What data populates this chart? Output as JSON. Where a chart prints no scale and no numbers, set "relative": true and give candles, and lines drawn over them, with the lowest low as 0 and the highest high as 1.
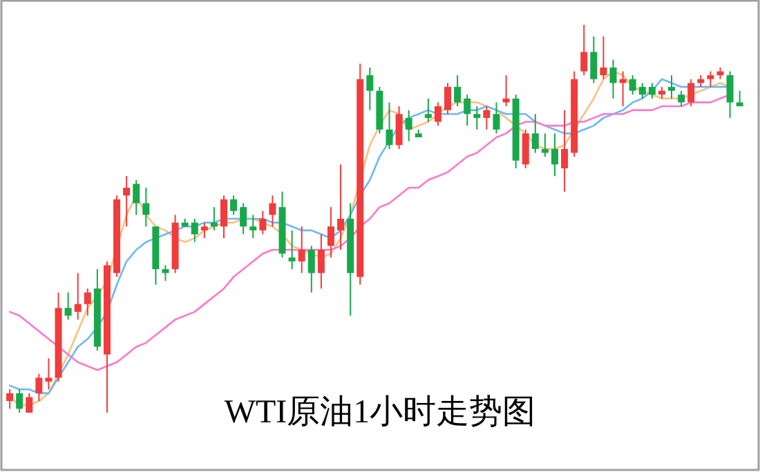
{
  "chart_data": {
    "type": "candlestick",
    "title": "WTI原油1小时走势图",
    "relative": true,
    "categories": [
      null,
      null,
      null,
      null,
      null,
      null,
      null,
      null,
      null,
      null,
      null,
      null,
      null,
      null,
      null,
      null,
      null,
      null,
      null,
      null,
      null,
      null,
      null,
      null,
      null,
      null,
      null,
      null,
      null,
      null,
      null,
      null,
      null,
      null,
      null,
      null,
      null,
      null,
      null,
      null,
      null,
      null,
      null,
      null,
      null,
      null,
      null,
      null,
      null,
      null,
      null,
      null,
      null,
      null,
      null,
      null,
      null,
      null,
      null,
      null,
      null,
      null,
      null,
      null,
      null,
      null,
      null,
      null,
      null,
      null,
      null,
      null,
      null,
      null,
      null,
      null
    ],
    "ohlc": [
      [
        0.03,
        0.06,
        0.01,
        0.05
      ],
      [
        0.05,
        0.06,
        0.0,
        0.01
      ],
      [
        0.0,
        0.05,
        0.0,
        0.04
      ],
      [
        0.05,
        0.1,
        0.03,
        0.09
      ],
      [
        0.08,
        0.14,
        0.06,
        0.09
      ],
      [
        0.09,
        0.31,
        0.08,
        0.27
      ],
      [
        0.27,
        0.31,
        0.24,
        0.25
      ],
      [
        0.26,
        0.36,
        0.24,
        0.28
      ],
      [
        0.28,
        0.32,
        0.25,
        0.31
      ],
      [
        0.32,
        0.37,
        0.16,
        0.17
      ],
      [
        0.15,
        0.39,
        0.0,
        0.38
      ],
      [
        0.36,
        0.56,
        0.35,
        0.55
      ],
      [
        0.56,
        0.61,
        0.48,
        0.58
      ],
      [
        0.59,
        0.6,
        0.51,
        0.54
      ],
      [
        0.54,
        0.58,
        0.48,
        0.51
      ],
      [
        0.48,
        0.48,
        0.33,
        0.37
      ],
      [
        0.37,
        0.38,
        0.34,
        0.36
      ],
      [
        0.37,
        0.51,
        0.36,
        0.49
      ],
      [
        0.49,
        0.5,
        0.48,
        0.48
      ],
      [
        0.49,
        0.5,
        0.44,
        0.46
      ],
      [
        0.47,
        0.49,
        0.45,
        0.48
      ],
      [
        0.49,
        0.53,
        0.47,
        0.48
      ],
      [
        0.48,
        0.56,
        0.45,
        0.55
      ],
      [
        0.55,
        0.56,
        0.51,
        0.52
      ],
      [
        0.53,
        0.54,
        0.46,
        0.48
      ],
      [
        0.48,
        0.51,
        0.45,
        0.47
      ],
      [
        0.47,
        0.52,
        0.46,
        0.5
      ],
      [
        0.51,
        0.56,
        0.48,
        0.54
      ],
      [
        0.53,
        0.57,
        0.4,
        0.41
      ],
      [
        0.4,
        0.47,
        0.37,
        0.39
      ],
      [
        0.39,
        0.48,
        0.36,
        0.42
      ],
      [
        0.42,
        0.43,
        0.31,
        0.36
      ],
      [
        0.36,
        0.46,
        0.32,
        0.42
      ],
      [
        0.43,
        0.53,
        0.4,
        0.48
      ],
      [
        0.47,
        0.64,
        0.42,
        0.5
      ],
      [
        0.5,
        0.54,
        0.25,
        0.36
      ],
      [
        0.35,
        0.9,
        0.33,
        0.86
      ],
      [
        0.87,
        0.89,
        0.78,
        0.83
      ],
      [
        0.83,
        0.84,
        0.72,
        0.73
      ],
      [
        0.73,
        0.8,
        0.68,
        0.69
      ],
      [
        0.69,
        0.79,
        0.68,
        0.77
      ],
      [
        0.76,
        0.78,
        0.7,
        0.73
      ],
      [
        0.72,
        0.73,
        0.71,
        0.71
      ],
      [
        0.77,
        0.81,
        0.75,
        0.76
      ],
      [
        0.75,
        0.8,
        0.74,
        0.79
      ],
      [
        0.78,
        0.85,
        0.77,
        0.84
      ],
      [
        0.84,
        0.87,
        0.79,
        0.8
      ],
      [
        0.81,
        0.82,
        0.74,
        0.77
      ],
      [
        0.77,
        0.79,
        0.73,
        0.76
      ],
      [
        0.76,
        0.79,
        0.73,
        0.78
      ],
      [
        0.77,
        0.8,
        0.72,
        0.73
      ],
      [
        0.8,
        0.87,
        0.79,
        0.81
      ],
      [
        0.81,
        0.82,
        0.63,
        0.65
      ],
      [
        0.64,
        0.73,
        0.63,
        0.72
      ],
      [
        0.72,
        0.77,
        0.67,
        0.68
      ],
      [
        0.68,
        0.72,
        0.66,
        0.67
      ],
      [
        0.68,
        0.72,
        0.61,
        0.64
      ],
      [
        0.63,
        0.78,
        0.57,
        0.68
      ],
      [
        0.67,
        0.88,
        0.66,
        0.86
      ],
      [
        0.88,
        1.0,
        0.87,
        0.93
      ],
      [
        0.93,
        0.97,
        0.85,
        0.86
      ],
      [
        0.87,
        0.97,
        0.86,
        0.89
      ],
      [
        0.89,
        0.91,
        0.81,
        0.85
      ],
      [
        0.85,
        0.88,
        0.79,
        0.86
      ],
      [
        0.86,
        0.87,
        0.82,
        0.83
      ],
      [
        0.84,
        0.85,
        0.81,
        0.82
      ],
      [
        0.84,
        0.85,
        0.81,
        0.82
      ],
      [
        0.82,
        0.84,
        0.81,
        0.83
      ],
      [
        0.84,
        0.87,
        0.81,
        0.83
      ],
      [
        0.82,
        0.83,
        0.79,
        0.8
      ],
      [
        0.8,
        0.86,
        0.79,
        0.85
      ],
      [
        0.85,
        0.87,
        0.84,
        0.86
      ],
      [
        0.86,
        0.88,
        0.84,
        0.87
      ],
      [
        0.87,
        0.89,
        0.86,
        0.88
      ],
      [
        0.87,
        0.88,
        0.76,
        0.8
      ],
      [
        0.8,
        0.83,
        0.79,
        0.79
      ]
    ],
    "colors": [
      "#f03c3c",
      "#18a84a",
      "#f03c3c",
      "#f03c3c",
      "#f03c3c",
      "#f03c3c",
      "#18a84a",
      "#f03c3c",
      "#f03c3c",
      "#18a84a",
      "#f03c3c",
      "#f03c3c",
      "#f03c3c",
      "#18a84a",
      "#18a84a",
      "#18a84a",
      "#18a84a",
      "#f03c3c",
      "#18a84a",
      "#18a84a",
      "#f03c3c",
      "#18a84a",
      "#f03c3c",
      "#18a84a",
      "#18a84a",
      "#18a84a",
      "#f03c3c",
      "#f03c3c",
      "#18a84a",
      "#18a84a",
      "#f03c3c",
      "#18a84a",
      "#f03c3c",
      "#f03c3c",
      "#f03c3c",
      "#18a84a",
      "#f03c3c",
      "#18a84a",
      "#18a84a",
      "#18a84a",
      "#f03c3c",
      "#18a84a",
      "#18a84a",
      "#18a84a",
      "#f03c3c",
      "#f03c3c",
      "#18a84a",
      "#18a84a",
      "#18a84a",
      "#f03c3c",
      "#18a84a",
      "#f03c3c",
      "#18a84a",
      "#f03c3c",
      "#18a84a",
      "#18a84a",
      "#18a84a",
      "#f03c3c",
      "#f03c3c",
      "#f03c3c",
      "#18a84a",
      "#f03c3c",
      "#18a84a",
      "#f03c3c",
      "#18a84a",
      "#18a84a",
      "#18a84a",
      "#f03c3c",
      "#18a84a",
      "#18a84a",
      "#f03c3c",
      "#f03c3c",
      "#f03c3c",
      "#f03c3c",
      "#18a84a",
      "#18a84a"
    ],
    "series": [
      {
        "type": "line",
        "color": "#ffbf80",
        "values": [
          0.04,
          0.02,
          0.02,
          0.03,
          0.05,
          0.1,
          0.15,
          0.21,
          0.27,
          0.3,
          0.34,
          null,
          0.51,
          0.56,
          0.51,
          0.48,
          0.47,
          0.45,
          0.44,
          0.45,
          0.47,
          0.48,
          0.49,
          0.49,
          0.5,
          0.5,
          0.49,
          0.48,
          0.46,
          0.43,
          0.42,
          0.41,
          0.4,
          0.41,
          0.45,
          0.51,
          null,
          0.69,
          0.74,
          0.78,
          0.77,
          0.73,
          0.74,
          0.75,
          0.77,
          0.79,
          0.8,
          0.8,
          0.8,
          0.79,
          0.78,
          0.76,
          0.74,
          0.72,
          0.69,
          0.68,
          0.68,
          0.69,
          0.73,
          0.77,
          0.81,
          0.86,
          0.88,
          0.87,
          0.84,
          0.83,
          0.82,
          0.81,
          0.81,
          0.81,
          0.82,
          0.83,
          0.84,
          0.85,
          0.84,
          null
        ]
      },
      {
        "type": "line",
        "color": "#6cb8f5",
        "values": [
          0.07,
          0.06,
          0.06,
          0.05,
          0.05,
          0.09,
          0.13,
          0.17,
          0.19,
          0.22,
          0.26,
          0.33,
          0.39,
          0.42,
          0.44,
          0.45,
          0.46,
          0.47,
          0.48,
          0.48,
          0.49,
          0.49,
          0.5,
          0.5,
          0.5,
          0.5,
          0.5,
          0.49,
          0.49,
          0.48,
          0.47,
          0.47,
          0.46,
          0.45,
          0.47,
          0.51,
          0.56,
          0.6,
          0.66,
          0.7,
          0.74,
          0.76,
          0.77,
          0.78,
          0.77,
          0.77,
          0.77,
          0.78,
          0.78,
          0.79,
          0.78,
          0.77,
          0.77,
          0.77,
          0.75,
          0.74,
          0.73,
          0.72,
          0.72,
          0.73,
          0.74,
          0.76,
          0.77,
          0.78,
          0.8,
          0.81,
          0.83,
          0.86,
          0.85,
          0.84,
          0.84,
          0.84,
          0.84,
          0.84,
          0.84,
          null
        ]
      },
      {
        "type": "line",
        "color": "#ff77cc",
        "values": [
          0.26,
          0.25,
          0.23,
          0.21,
          0.19,
          0.17,
          0.15,
          0.13,
          0.12,
          0.11,
          0.12,
          0.13,
          0.15,
          0.17,
          0.18,
          0.2,
          0.22,
          0.24,
          0.25,
          0.26,
          0.28,
          0.3,
          0.32,
          0.35,
          0.37,
          0.39,
          0.41,
          0.42,
          0.42,
          0.42,
          0.42,
          0.42,
          0.42,
          0.42,
          0.43,
          0.45,
          0.48,
          0.5,
          0.53,
          0.54,
          0.56,
          0.58,
          0.58,
          0.6,
          0.61,
          0.62,
          0.64,
          0.66,
          0.67,
          0.69,
          0.71,
          0.72,
          0.74,
          0.75,
          0.75,
          0.74,
          0.74,
          0.74,
          0.75,
          0.75,
          0.76,
          0.77,
          0.77,
          0.77,
          0.78,
          0.78,
          0.78,
          0.79,
          0.79,
          0.79,
          0.8,
          0.8,
          0.8,
          0.81,
          0.82,
          null
        ]
      }
    ]
  }
}
